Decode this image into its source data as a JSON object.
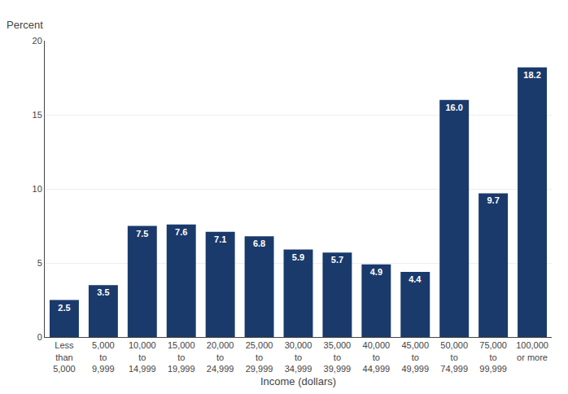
{
  "chart_data": {
    "type": "bar",
    "categories": [
      "Less\nthan\n5,000",
      "5,000\nto\n9,999",
      "10,000\nto\n14,999",
      "15,000\nto\n19,999",
      "20,000\nto\n24,999",
      "25,000\nto\n29,999",
      "30,000\nto\n34,999",
      "35,000\nto\n39,999",
      "40,000\nto\n44,999",
      "45,000\nto\n49,999",
      "50,000\nto\n74,999",
      "75,000\nto\n99,999",
      "100,000\nor more"
    ],
    "values": [
      2.5,
      3.5,
      7.5,
      7.6,
      7.1,
      6.8,
      5.9,
      5.7,
      4.9,
      4.4,
      16.0,
      9.7,
      18.2
    ],
    "value_labels": [
      "2.5",
      "3.5",
      "7.5",
      "7.6",
      "7.1",
      "6.8",
      "5.9",
      "5.7",
      "4.9",
      "4.4",
      "16.0",
      "9.7",
      "18.2"
    ],
    "data_labels": true,
    "color": "#1a3a6b",
    "xlabel": "Income (dollars)",
    "ylabel": "Percent",
    "ylim": [
      0,
      20
    ],
    "yticks": [
      0,
      5,
      10,
      15,
      20
    ],
    "grid": true
  }
}
